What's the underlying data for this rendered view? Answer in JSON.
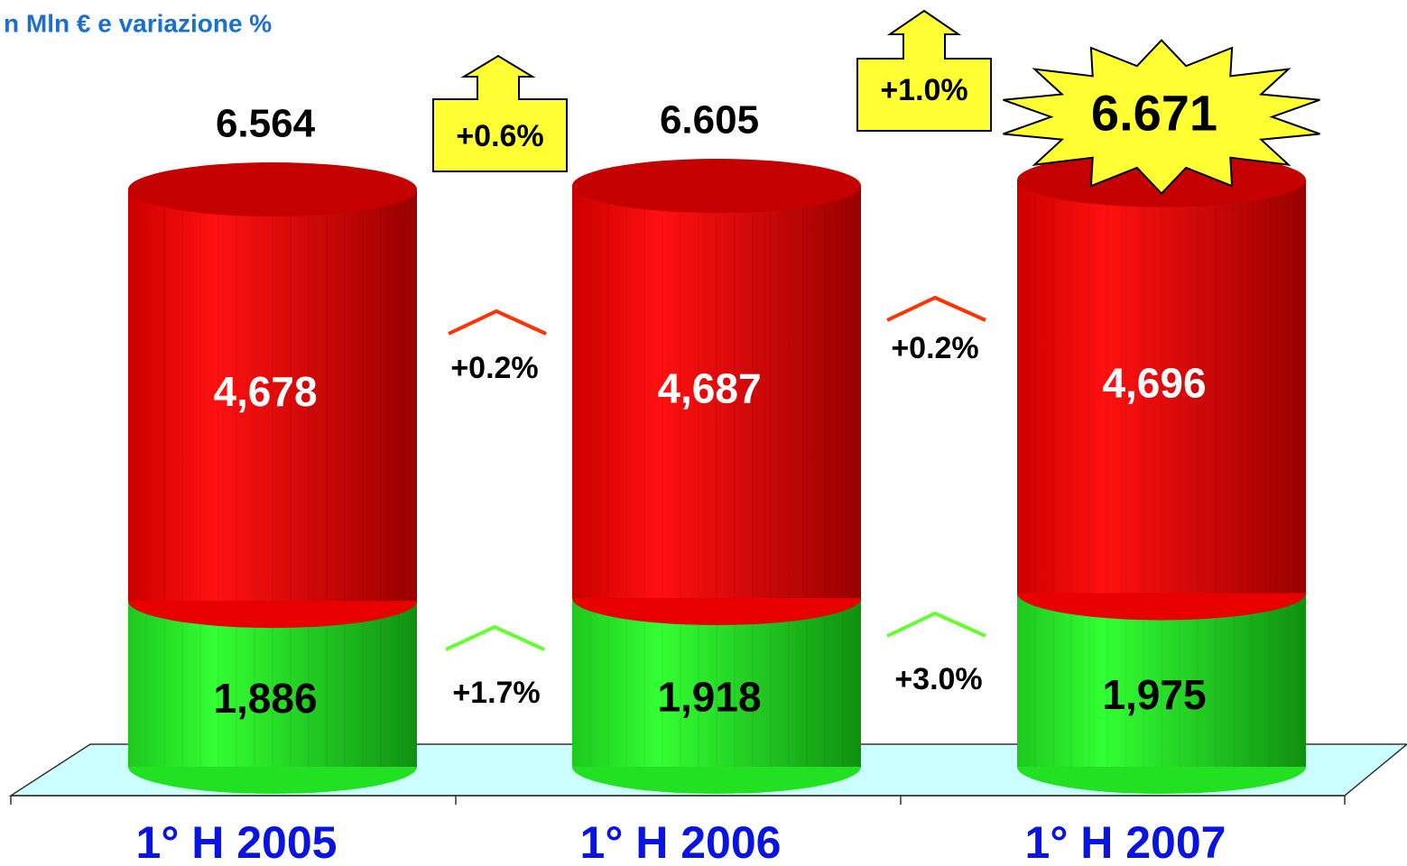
{
  "chart_data": {
    "type": "stacked-cylinder",
    "title": "n Mln € e variazione %",
    "categories": [
      "1° H 2005",
      "1° H 2006",
      "1° H 2007"
    ],
    "series": [
      {
        "name": "Green",
        "color": "#22e022",
        "values": [
          1886,
          1918,
          1975
        ],
        "value_labels": [
          "1,886",
          "1,918",
          "1,975"
        ]
      },
      {
        "name": "Red",
        "color": "#e80000",
        "values": [
          4678,
          4687,
          4696
        ],
        "value_labels": [
          "4,678",
          "4,687",
          "4,696"
        ]
      }
    ],
    "totals": {
      "values": [
        6564,
        6605,
        6671
      ],
      "value_labels": [
        "6.564",
        "6.605",
        "6.671"
      ]
    },
    "annotations": {
      "total_growth": [
        "+0.6%",
        "+1.0%"
      ],
      "red_growth": [
        "+0.2%",
        "+0.2%"
      ],
      "green_growth": [
        "+1.7%",
        "+3.0%"
      ]
    }
  }
}
